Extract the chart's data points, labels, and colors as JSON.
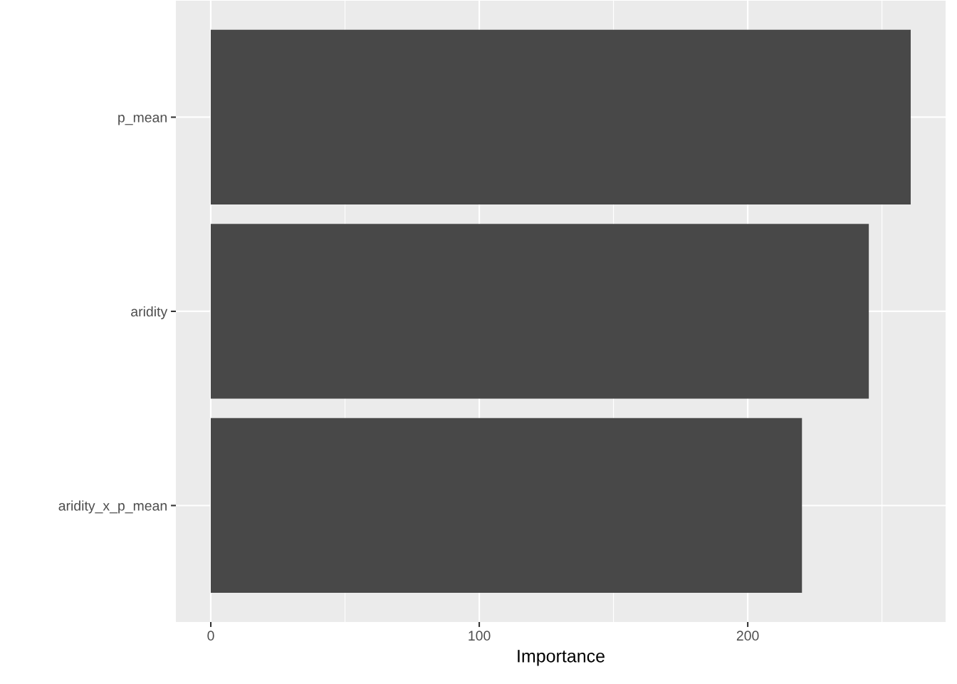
{
  "chart_data": {
    "type": "bar",
    "orientation": "horizontal",
    "xlabel": "Importance",
    "categories": [
      "p_mean",
      "aridity",
      "aridity_x_p_mean"
    ],
    "values": [
      260.7,
      245.1,
      220.2
    ],
    "color": "#484848",
    "xlim": [
      -13,
      273.7
    ],
    "xticks": [
      0,
      {
        "value": 50,
        "label": null
      },
      100,
      {
        "value": 150,
        "label": null
      },
      200,
      {
        "value": 250,
        "label": null
      }
    ],
    "grid": true
  }
}
